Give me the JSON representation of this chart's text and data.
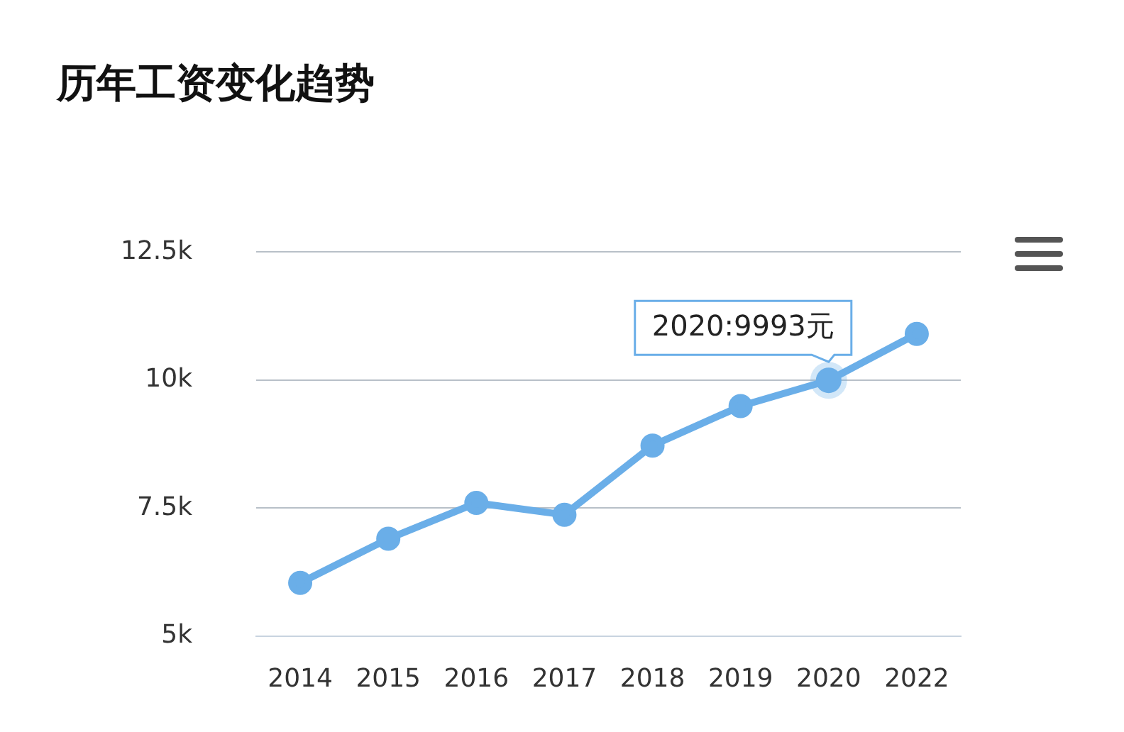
{
  "chart_data": {
    "type": "line",
    "title": "历年工资变化趋势",
    "categories": [
      "2014",
      "2015",
      "2016",
      "2017",
      "2018",
      "2019",
      "2020",
      "2022"
    ],
    "series": [
      {
        "color": "#6aaee8",
        "values": [
          6040,
          6900,
          7600,
          7370,
          8720,
          9490,
          9993,
          10900
        ]
      }
    ],
    "ylim": [
      5000,
      12500
    ],
    "yticks": [
      {
        "value": 5000,
        "label": "5k"
      },
      {
        "value": 7500,
        "label": "7.5k"
      },
      {
        "value": 10000,
        "label": "10k"
      },
      {
        "value": 12500,
        "label": "12.5k"
      }
    ],
    "grid": "y",
    "legend": false,
    "marker": "circle",
    "line_style": "solid",
    "annotations": [
      {
        "text": "2020:9993元",
        "x": "2020",
        "y": 9993
      }
    ]
  }
}
